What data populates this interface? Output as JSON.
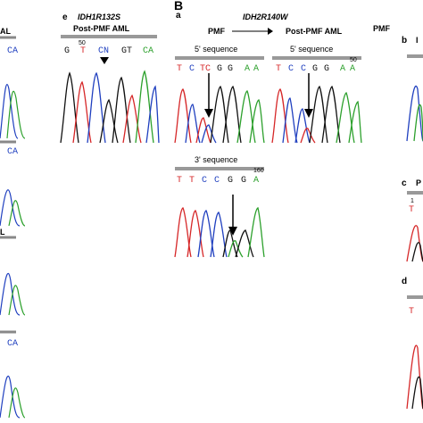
{
  "section_label": "B",
  "panels": {
    "e": {
      "letter": "e",
      "mutation": "IDH1R132S",
      "condition": "Post-PMF AML",
      "position_number": "50",
      "bases": [
        "G",
        "T",
        "CN",
        "GT",
        "CA"
      ]
    },
    "a": {
      "letter": "a",
      "mutation": "IDH2R140W",
      "condition_left": "PMF",
      "condition_right": "Post-PMF AML",
      "left_title": "5' sequence",
      "left_bases": [
        "T",
        "C",
        "T",
        "C",
        "G",
        "G",
        "A",
        "A"
      ],
      "right_title": "5' sequence",
      "right_number": "50",
      "right_bases": [
        "T",
        "C",
        "C",
        "G",
        "G",
        "A",
        "A"
      ],
      "bottom_title": "3' sequence",
      "bottom_number": "160",
      "bottom_bases": [
        "T",
        "T",
        "C",
        "C",
        "G",
        "G",
        "A"
      ]
    },
    "b": {
      "letter": "b",
      "condition": "PMF",
      "partial_text": "I"
    },
    "c": {
      "letter": "c",
      "partial_text": "P",
      "partial_number": "1",
      "partial_base": "T"
    },
    "d": {
      "letter": "d",
      "partial_base": "T"
    },
    "left_edge": {
      "fragment_1": "AL",
      "fragment_2": "CA",
      "fragment_3": "CA",
      "fragment_4": "L",
      "fragment_5": "CA"
    }
  },
  "base_colors": {
    "A": "#2ca02c",
    "C": "#1f3fbf",
    "G": "#111111",
    "T": "#d62728"
  }
}
